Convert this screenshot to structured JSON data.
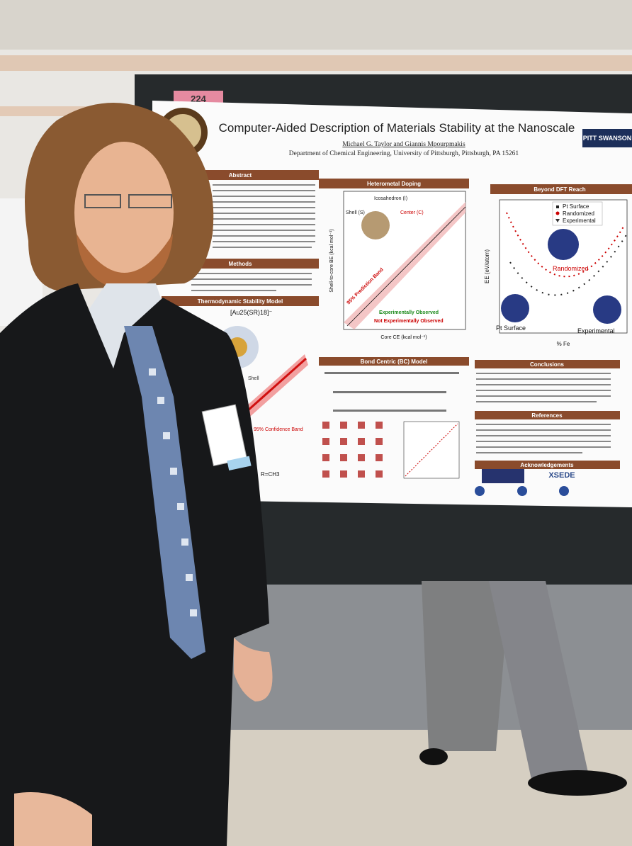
{
  "poster": {
    "booth_number": "224",
    "title": "Computer-Aided Description of Materials Stability at the Nanoscale",
    "authors": "Michael G. Taylor and Giannis Mpourpmakis",
    "affiliation": "Department of Chemical Engineering, University of Pittsburgh, Pittsburgh, PA 15261",
    "logo_right": "PITT SWANSON",
    "sections": {
      "abstract": "Abstract",
      "methods": "Methods",
      "thermo": "Thermodynamic Stability Model",
      "doping": "Heterometal Doping",
      "beyond": "Beyond DFT Reach",
      "bc": "Bond Centric (BC) Model",
      "conclusions": "Conclusions",
      "references": "References",
      "acknowledgements": "Acknowledgements"
    },
    "doping_plot": {
      "y_label": "Shell-to-core BE (kcal mol⁻¹)",
      "x_label": "Core CE (kcal mol⁻¹)",
      "icosahedron": "Icosahedron (I)",
      "shell": "Shell (S)",
      "center": "Center (C)",
      "band": "95% Prediction Band",
      "observed": "Experimentally Observed",
      "not_observed": "Not Experimentally Observed"
    },
    "beyond_plot": {
      "y_label": "EE (eV/atom)",
      "x_label": "% Fe",
      "legend": [
        "Pt Surface",
        "Randomized",
        "Experimental"
      ],
      "randomized": "Randomized",
      "pt_surface": "Pt Surface",
      "experimental": "Experimental"
    },
    "thermo_formula": "[Au25(SR)18]⁻",
    "thermo_band": "95% Confidence Band",
    "thermo_shell": "Shell",
    "thermo_r": "R=CH3",
    "ack_logo": "XSEDE"
  }
}
